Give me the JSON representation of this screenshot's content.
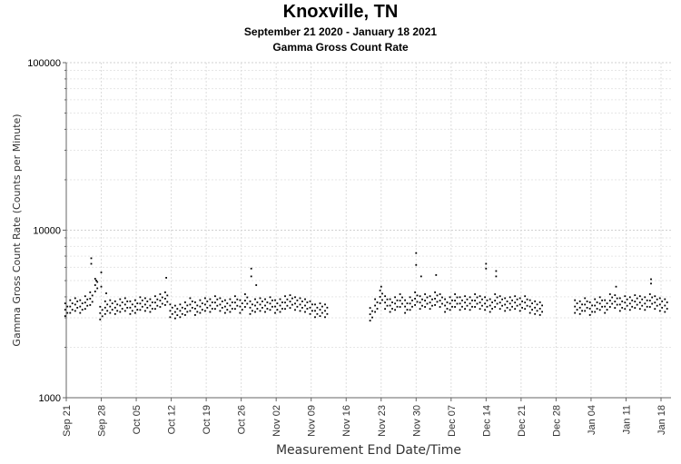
{
  "chart_data": {
    "type": "scatter",
    "title": "Knoxville, TN",
    "subtitle": "September 21 2020 - January 18 2021",
    "subtitle2": "Gamma Gross Count Rate",
    "xlabel": "Measurement End Date/Time",
    "ylabel": "Gamma Gross Count Rate (Counts per Minute)",
    "yscale": "log",
    "ylim": [
      1000,
      100000
    ],
    "xlim": [
      "2020-09-21",
      "2021-01-20"
    ],
    "y_ticks": [
      {
        "value": 1000,
        "label": "1000"
      },
      {
        "value": 10000,
        "label": "10000"
      },
      {
        "value": 100000,
        "label": "100000"
      }
    ],
    "x_ticks": [
      {
        "date": "2020-09-21",
        "label": "Sep 21"
      },
      {
        "date": "2020-09-28",
        "label": "Sep 28"
      },
      {
        "date": "2020-10-05",
        "label": "Oct 05"
      },
      {
        "date": "2020-10-12",
        "label": "Oct 12"
      },
      {
        "date": "2020-10-19",
        "label": "Oct 19"
      },
      {
        "date": "2020-10-26",
        "label": "Oct 26"
      },
      {
        "date": "2020-11-02",
        "label": "Nov 02"
      },
      {
        "date": "2020-11-09",
        "label": "Nov 09"
      },
      {
        "date": "2020-11-16",
        "label": "Nov 16"
      },
      {
        "date": "2020-11-23",
        "label": "Nov 23"
      },
      {
        "date": "2020-11-30",
        "label": "Nov 30"
      },
      {
        "date": "2020-12-07",
        "label": "Dec 07"
      },
      {
        "date": "2020-12-14",
        "label": "Dec 14"
      },
      {
        "date": "2020-12-21",
        "label": "Dec 21"
      },
      {
        "date": "2020-12-28",
        "label": "Dec 28"
      },
      {
        "date": "2021-01-04",
        "label": "Jan 04"
      },
      {
        "date": "2021-01-11",
        "label": "Jan 11"
      },
      {
        "date": "2021-01-18",
        "label": "Jan 18"
      }
    ],
    "grid": true,
    "marker_color": "#000000",
    "series": [
      {
        "x": [
          "2020-09-21",
          "2020-09-22",
          "2020-09-23",
          "2020-09-24",
          "2020-09-25",
          "2020-09-26",
          "2020-09-27",
          "2020-09-28",
          "2020-09-29",
          "2020-09-30",
          "2020-10-01",
          "2020-10-02",
          "2020-10-03",
          "2020-10-04",
          "2020-10-05",
          "2020-10-06",
          "2020-10-07",
          "2020-10-08",
          "2020-10-09",
          "2020-10-10",
          "2020-10-11",
          "2020-10-12",
          "2020-10-13",
          "2020-10-14",
          "2020-10-15",
          "2020-10-16",
          "2020-10-17",
          "2020-10-18",
          "2020-10-19",
          "2020-10-20",
          "2020-10-21",
          "2020-10-22",
          "2020-10-23",
          "2020-10-24",
          "2020-10-25",
          "2020-10-26",
          "2020-10-27",
          "2020-10-28",
          "2020-10-29",
          "2020-10-30",
          "2020-10-31",
          "2020-11-01",
          "2020-11-02",
          "2020-11-03",
          "2020-11-04",
          "2020-11-05",
          "2020-11-06",
          "2020-11-07",
          "2020-11-08",
          "2020-11-09",
          "2020-11-10",
          "2020-11-11",
          "2020-11-12",
          "2020-11-21",
          "2020-11-22",
          "2020-11-23",
          "2020-11-24",
          "2020-11-25",
          "2020-11-26",
          "2020-11-27",
          "2020-11-28",
          "2020-11-29",
          "2020-11-30",
          "2020-12-01",
          "2020-12-02",
          "2020-12-03",
          "2020-12-04",
          "2020-12-05",
          "2020-12-06",
          "2020-12-07",
          "2020-12-08",
          "2020-12-09",
          "2020-12-10",
          "2020-12-11",
          "2020-12-12",
          "2020-12-13",
          "2020-12-14",
          "2020-12-15",
          "2020-12-16",
          "2020-12-17",
          "2020-12-18",
          "2020-12-19",
          "2020-12-20",
          "2020-12-21",
          "2020-12-22",
          "2020-12-23",
          "2020-12-24",
          "2020-12-25",
          "2021-01-01",
          "2021-01-02",
          "2021-01-03",
          "2021-01-04",
          "2021-01-05",
          "2021-01-06",
          "2021-01-07",
          "2021-01-08",
          "2021-01-09",
          "2021-01-10",
          "2021-01-11",
          "2021-01-12",
          "2021-01-13",
          "2021-01-14",
          "2021-01-15",
          "2021-01-16",
          "2021-01-17",
          "2021-01-18",
          "2021-01-19"
        ],
        "y": [
          3350,
          3500,
          3600,
          3500,
          3700,
          3900,
          4700,
          3200,
          3450,
          3500,
          3450,
          3550,
          3600,
          3450,
          3500,
          3650,
          3600,
          3550,
          3700,
          3800,
          3900,
          3300,
          3250,
          3300,
          3400,
          3600,
          3400,
          3500,
          3600,
          3550,
          3700,
          3600,
          3500,
          3550,
          3700,
          3500,
          3800,
          3450,
          3550,
          3600,
          3550,
          3650,
          3500,
          3550,
          3700,
          3750,
          3650,
          3600,
          3550,
          3450,
          3300,
          3350,
          3300,
          3150,
          3550,
          4000,
          3700,
          3550,
          3650,
          3800,
          3500,
          3650,
          3900,
          3700,
          3800,
          3700,
          3900,
          3800,
          3550,
          3650,
          3800,
          3650,
          3700,
          3650,
          3800,
          3700,
          3650,
          3550,
          3800,
          3700,
          3600,
          3650,
          3700,
          3600,
          3700,
          3500,
          3450,
          3400,
          3500,
          3450,
          3600,
          3400,
          3550,
          3650,
          3500,
          3800,
          3750,
          3600,
          3700,
          3650,
          3750,
          3700,
          3650,
          3800,
          3700,
          3600,
          3550
        ]
      },
      {
        "x": [
          "2020-09-26",
          "2020-09-26",
          "2020-09-27",
          "2020-09-28",
          "2020-09-28",
          "2020-09-29",
          "2020-10-11",
          "2020-10-28",
          "2020-10-28",
          "2020-10-29",
          "2020-11-23",
          "2020-11-30",
          "2020-11-30",
          "2020-12-01",
          "2020-12-04",
          "2020-12-14",
          "2020-12-14",
          "2020-12-16",
          "2020-12-16",
          "2021-01-09",
          "2021-01-16",
          "2021-01-16"
        ],
        "y": [
          6800,
          6300,
          5000,
          4600,
          5600,
          4200,
          5200,
          5900,
          5300,
          4700,
          4600,
          7300,
          6200,
          5300,
          5400,
          6300,
          5900,
          5700,
          5300,
          4600,
          5100,
          4800
        ]
      }
    ]
  }
}
